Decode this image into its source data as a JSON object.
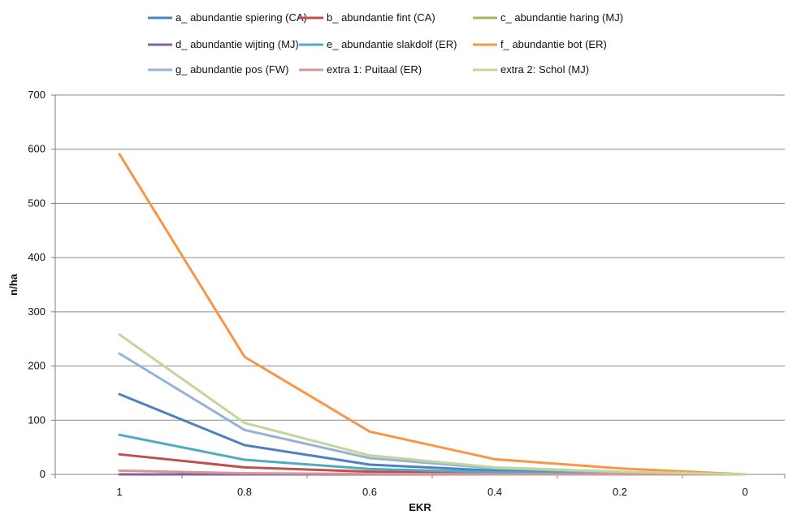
{
  "chart_data": {
    "type": "line",
    "title": "",
    "xlabel": "EKR",
    "ylabel": "n/ha",
    "x": [
      1,
      0.8,
      0.6,
      0.4,
      0.2,
      0
    ],
    "x_tick_labels": [
      "1",
      "0.8",
      "0.6",
      "0.4",
      "0.2",
      "0"
    ],
    "ylim": [
      0,
      700
    ],
    "y_ticks": [
      0,
      100,
      200,
      300,
      400,
      500,
      600,
      700
    ],
    "y_tick_labels": [
      "0",
      "100",
      "200",
      "300",
      "400",
      "500",
      "600",
      "700"
    ],
    "x_axis_direction": "descending",
    "grid": true,
    "legend_position": "top",
    "series": [
      {
        "name": "a_ abundantie spiering (CA)",
        "color": "#4F81BD",
        "values": [
          148,
          54,
          18,
          7,
          2,
          0
        ]
      },
      {
        "name": "b_ abundantie fint (CA)",
        "color": "#C0504D",
        "values": [
          37,
          13,
          5,
          2,
          1,
          0
        ]
      },
      {
        "name": "c_ abundantie haring (MJ)",
        "color": "#9BBB59",
        "values": [
          0,
          0,
          0,
          0,
          0,
          0
        ]
      },
      {
        "name": "d_ abundantie wijting (MJ)",
        "color": "#8064A2",
        "values": [
          0,
          0,
          0,
          0,
          0,
          0
        ]
      },
      {
        "name": "e_ abundantie slakdolf  (ER)",
        "color": "#4BACC6",
        "values": [
          73,
          27,
          10,
          4,
          1,
          0
        ]
      },
      {
        "name": "f_ abundantie bot (ER)",
        "color": "#F79646",
        "values": [
          591,
          217,
          79,
          28,
          11,
          0
        ]
      },
      {
        "name": "g_ abundantie pos (FW)",
        "color": "#95B3D7",
        "values": [
          223,
          82,
          30,
          11,
          4,
          0
        ]
      },
      {
        "name": "extra 1: Puitaal (ER)",
        "color": "#D99694",
        "values": [
          7,
          2,
          1,
          0,
          0,
          0
        ]
      },
      {
        "name": "extra 2: Schol (MJ)",
        "color": "#C3D69B",
        "values": [
          258,
          95,
          35,
          13,
          5,
          0
        ]
      }
    ]
  }
}
